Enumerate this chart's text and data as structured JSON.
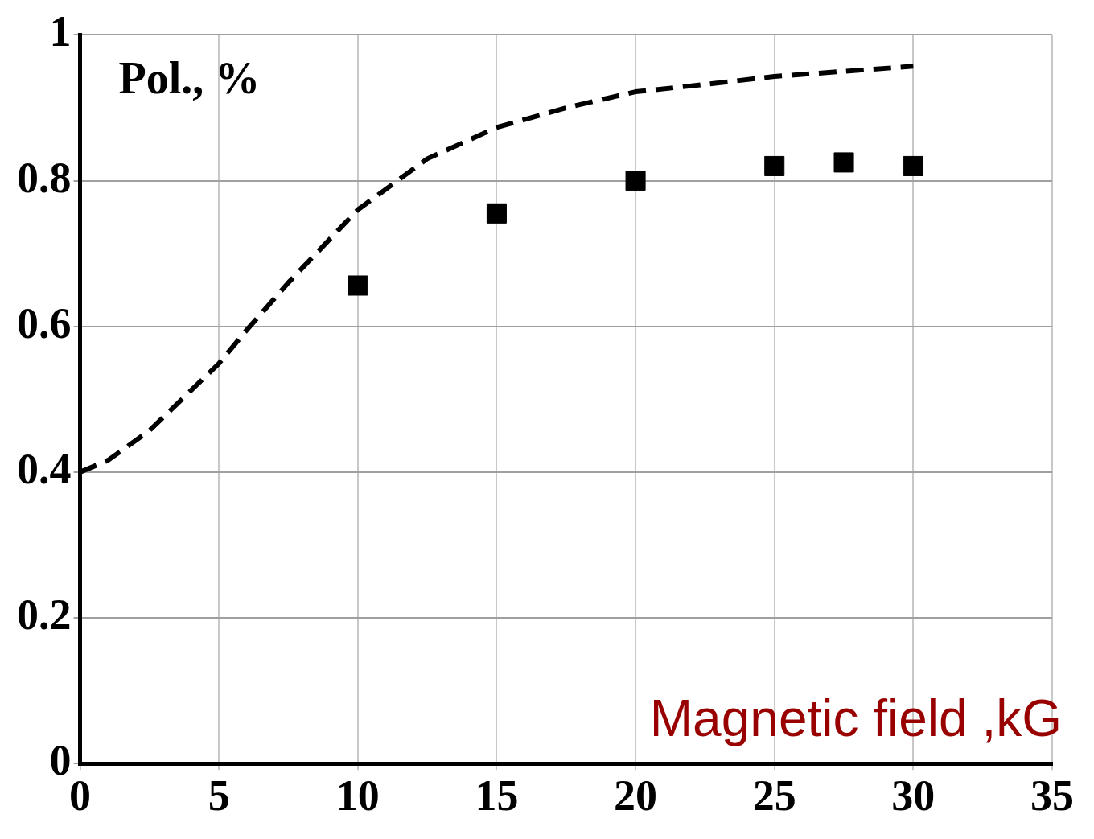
{
  "chart_data": {
    "type": "scatter",
    "ylabel": "Pol., %",
    "xlabel": "Magnetic field ,kG",
    "xlim": [
      0,
      35
    ],
    "ylim": [
      0,
      1
    ],
    "xticks": [
      0,
      5,
      10,
      15,
      20,
      25,
      30,
      35
    ],
    "yticks": [
      0,
      0.2,
      0.4,
      0.6,
      0.8,
      1
    ],
    "grid": true,
    "legend": false,
    "series": [
      {
        "type": "scatter",
        "color": "#000000",
        "marker": "square",
        "x": [
          10,
          15,
          20,
          25,
          27.5,
          30
        ],
        "values": [
          0.656,
          0.755,
          0.8,
          0.82,
          0.825,
          0.82
        ]
      },
      {
        "type": "line",
        "color": "#000000",
        "marker": "none",
        "line_style": "dashed",
        "x": [
          0,
          1,
          2.5,
          5,
          6,
          7.5,
          10,
          12.5,
          15,
          17.5,
          20,
          22.5,
          25,
          27.5,
          30
        ],
        "values": [
          0.4,
          0.416,
          0.457,
          0.549,
          0.595,
          0.66,
          0.76,
          0.83,
          0.873,
          0.9,
          0.922,
          0.932,
          0.943,
          0.95,
          0.957
        ]
      }
    ]
  }
}
